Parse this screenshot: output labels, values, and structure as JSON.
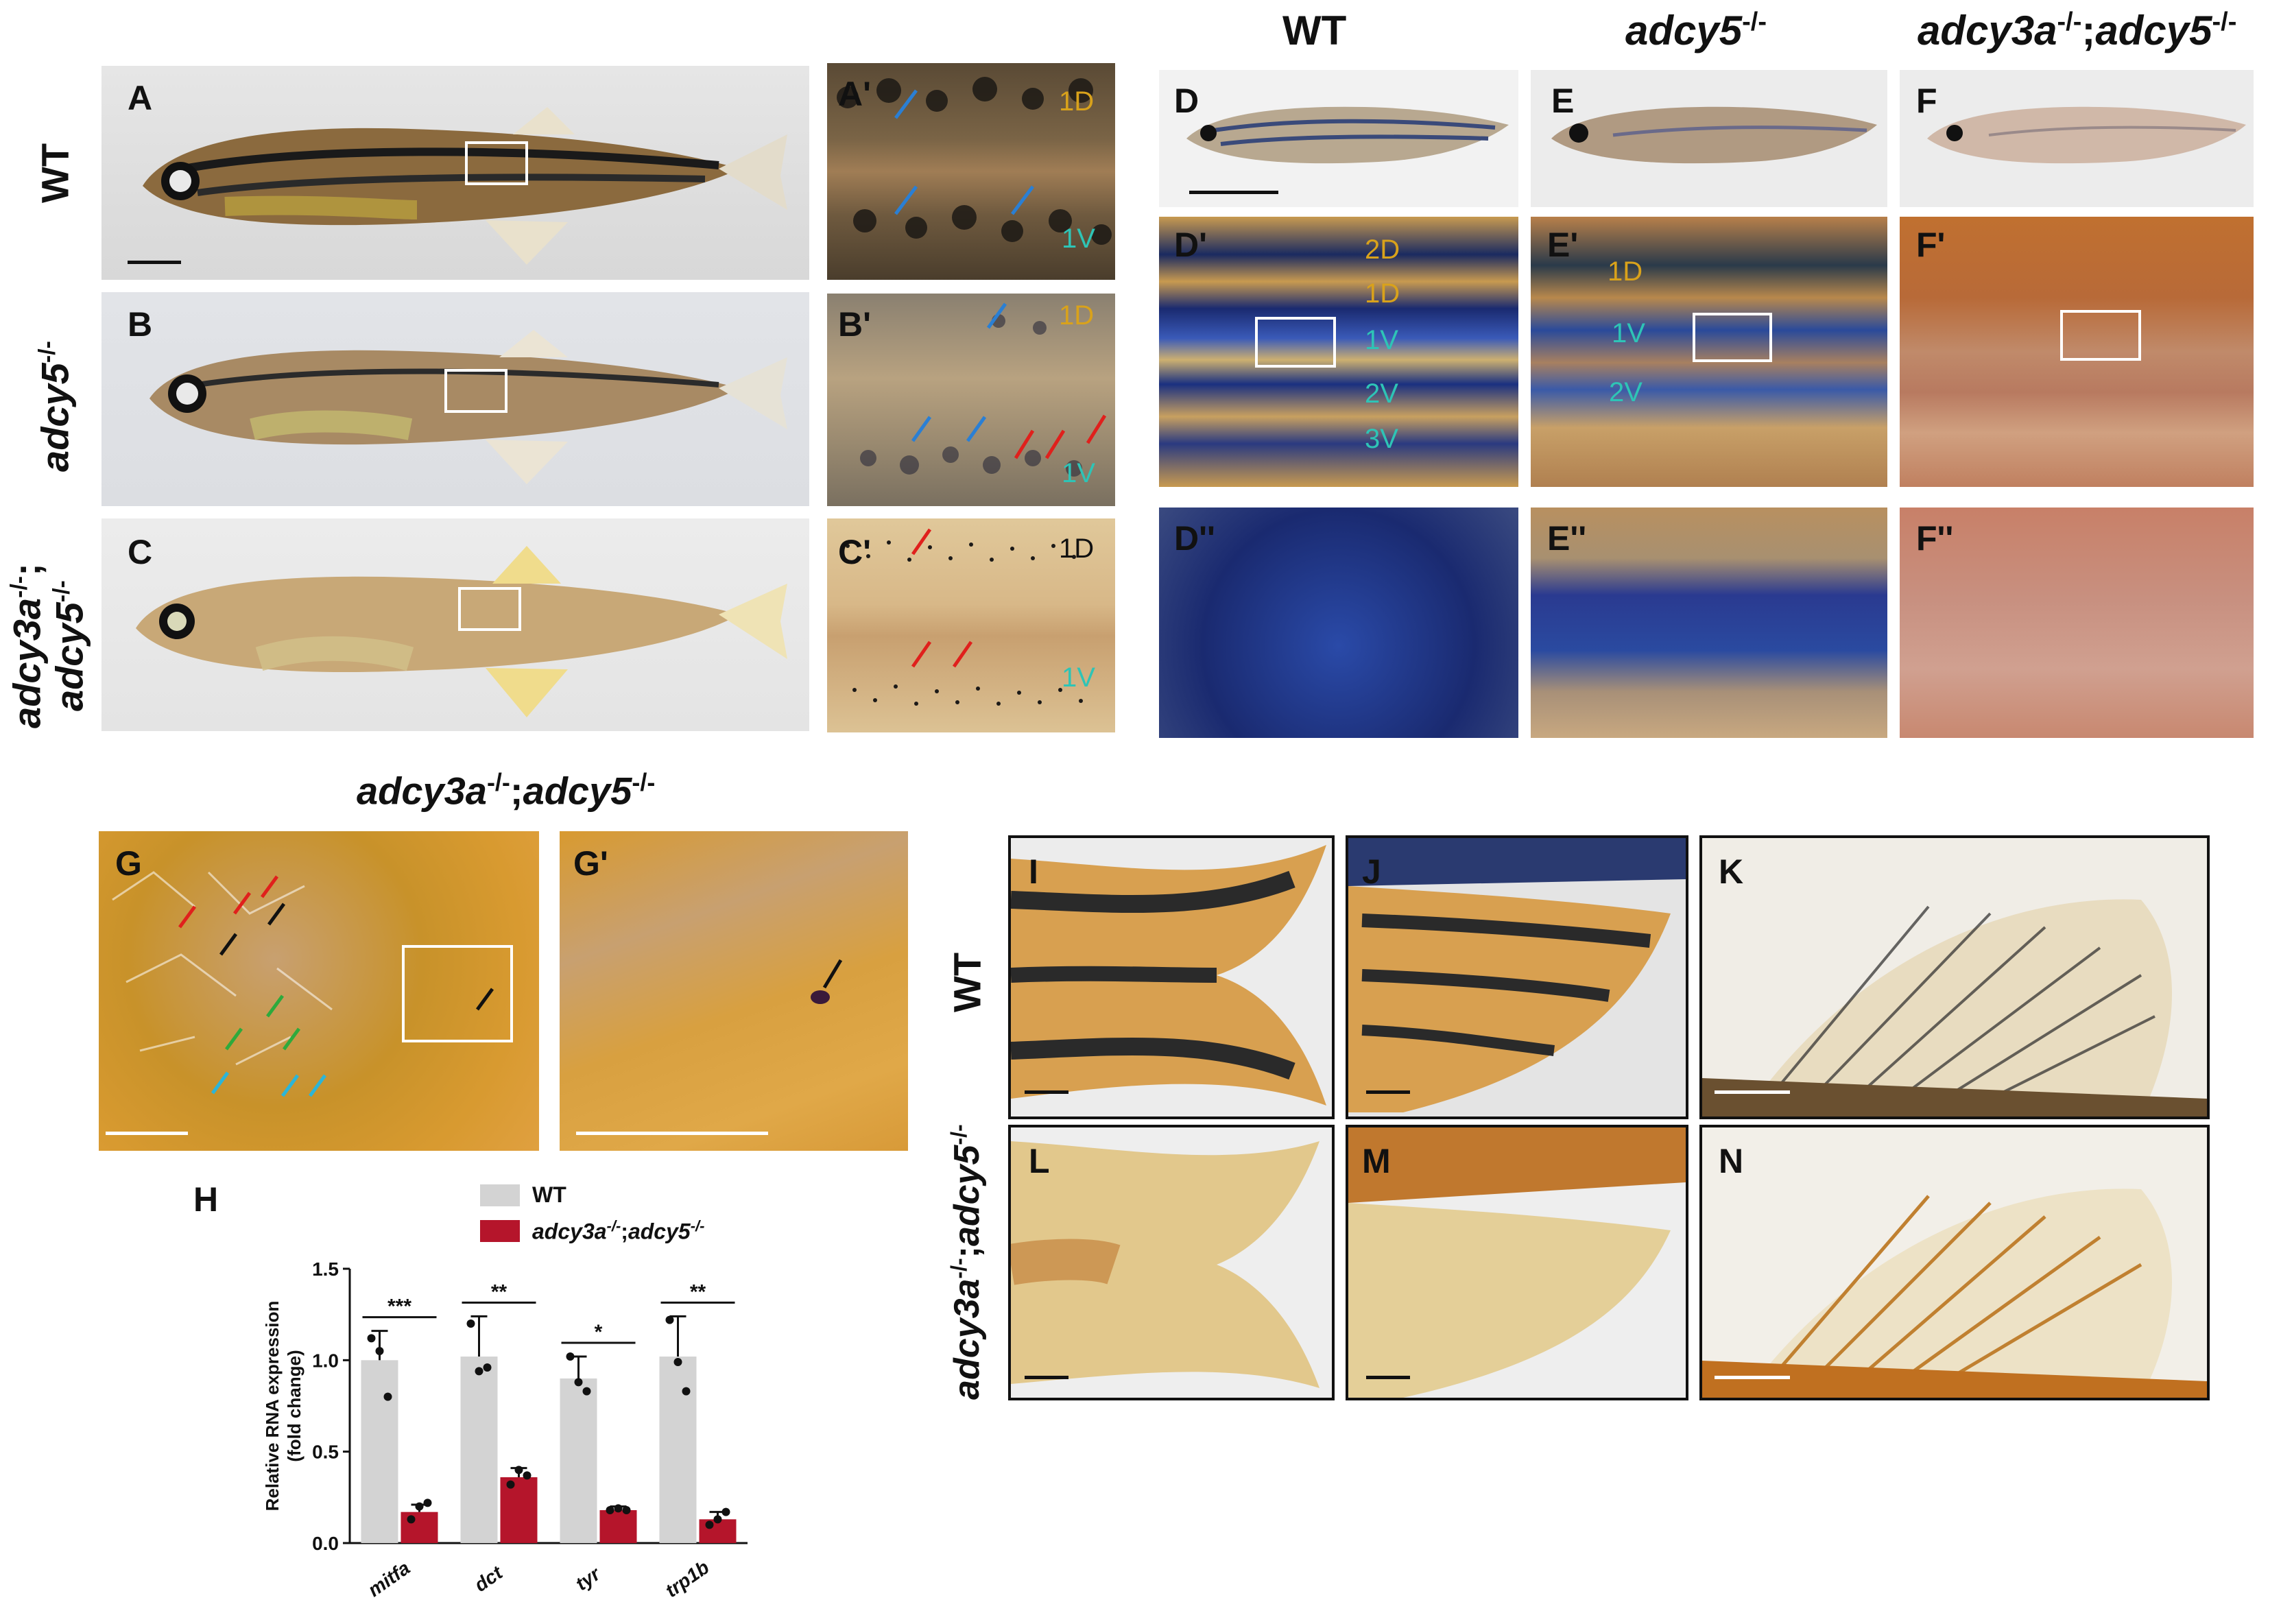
{
  "column_headers": {
    "wt": "WT",
    "adcy5_base": "adcy5",
    "adcy5_sup": "-/-",
    "double_a_base": "adcy3a",
    "double_a_sup": "-/-",
    "double_sep": ";",
    "double_b_base": "adcy5",
    "double_b_sup": "-/-"
  },
  "row_labels": {
    "wt": "WT",
    "adcy5_base": "adcy5",
    "adcy5_sup": "-/-",
    "double_line1_base": "adcy3a",
    "double_line1_sup": "-/-",
    "double_line1_sep": ";",
    "double_line2_base": "adcy5",
    "double_line2_sup": "-/-"
  },
  "panel_labels": {
    "A": "A",
    "A_prime": "A'",
    "B": "B",
    "B_prime": "B'",
    "C": "C",
    "C_prime": "C'",
    "D": "D",
    "D_prime": "D'",
    "D_double": "D''",
    "E": "E",
    "E_prime": "E'",
    "E_double": "E''",
    "F": "F",
    "F_prime": "F'",
    "F_double": "F''",
    "G": "G",
    "G_prime": "G'",
    "H": "H",
    "I": "I",
    "J": "J",
    "K": "K",
    "L": "L",
    "M": "M",
    "N": "N"
  },
  "stripe_labels": {
    "a_prime_1d": "1D",
    "a_prime_1v": "1V",
    "b_prime_1d": "1D",
    "b_prime_1v": "1V",
    "c_prime_1d": "1D",
    "c_prime_1v": "1V",
    "d_prime_2d": "2D",
    "d_prime_1d": "1D",
    "d_prime_1v": "1V",
    "d_prime_2v": "2V",
    "d_prime_3v": "3V",
    "e_prime_1d": "1D",
    "e_prime_1v": "1V",
    "e_prime_2v": "2V"
  },
  "g_section_title": {
    "base1": "adcy3a",
    "sup1": "-/-",
    "sep": ";",
    "base2": "adcy5",
    "sup2": "-/-"
  },
  "colors": {
    "stripe_label_gold": "#d9a21b",
    "stripe_label_teal": "#2ec4b6",
    "wt_bar": "#d3d3d3",
    "mutant_bar": "#b5152b",
    "arrow_blue": "#2a7fd4",
    "arrow_red": "#e0201c",
    "arrow_black": "#111111",
    "arrow_green": "#2eaa3c",
    "arrow_cyan": "#2cb5d8"
  },
  "chart_data": {
    "type": "bar",
    "title": "",
    "ylabel_line1": "Relative RNA expression",
    "ylabel_line2": "(fold change)",
    "xlabel": "",
    "ylim": [
      0,
      1.5
    ],
    "yticks": [
      "0.0",
      "0.5",
      "1.0",
      "1.5"
    ],
    "ytick_values": [
      0,
      0.5,
      1.0,
      1.5
    ],
    "categories": [
      "mitfa",
      "dct",
      "tyr",
      "trp1b"
    ],
    "legend_position": "top",
    "series": [
      {
        "name": "WT",
        "color": "#d3d3d3",
        "values": [
          1.0,
          1.02,
          0.9,
          1.02
        ],
        "errors": [
          0.16,
          0.22,
          0.12,
          0.22
        ],
        "points": [
          [
            1.12,
            1.05,
            0.8
          ],
          [
            1.2,
            0.94,
            0.96
          ],
          [
            1.02,
            0.88,
            0.83
          ],
          [
            1.22,
            0.99,
            0.83
          ]
        ]
      },
      {
        "name_base": "adcy3a",
        "name_sup1": "-/-",
        "name_sep": ";",
        "name_base2": "adcy5",
        "name_sup2": "-/-",
        "color": "#b5152b",
        "values": [
          0.17,
          0.36,
          0.18,
          0.13
        ],
        "errors": [
          0.04,
          0.05,
          0.02,
          0.04
        ],
        "points": [
          [
            0.13,
            0.2,
            0.22
          ],
          [
            0.32,
            0.4,
            0.37
          ],
          [
            0.18,
            0.19,
            0.18
          ],
          [
            0.1,
            0.13,
            0.17
          ]
        ]
      }
    ],
    "significance": [
      "***",
      "**",
      "*",
      "**"
    ]
  }
}
